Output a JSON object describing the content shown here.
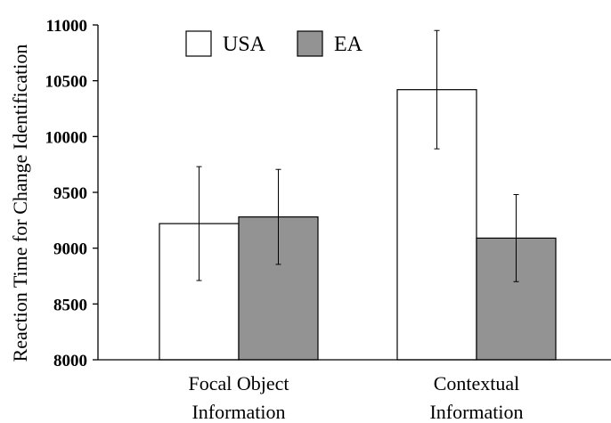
{
  "chart_data": {
    "type": "bar",
    "title": "",
    "xlabel": "",
    "ylabel": "Reaction Time for Change Identification",
    "ylim": [
      8000,
      11000
    ],
    "yticks": [
      8000,
      8500,
      9000,
      9500,
      10000,
      10500,
      11000
    ],
    "grid": false,
    "legend_position": "top-left",
    "categories": [
      [
        "Focal Object",
        "Information"
      ],
      [
        "Contextual",
        "Information"
      ]
    ],
    "series": [
      {
        "name": "USA",
        "color": "#ffffff",
        "values": [
          9220,
          10420
        ],
        "error": [
          510,
          530
        ]
      },
      {
        "name": "EA",
        "color": "#939393",
        "values": [
          9280,
          9090
        ],
        "error": [
          425,
          390
        ]
      }
    ]
  }
}
